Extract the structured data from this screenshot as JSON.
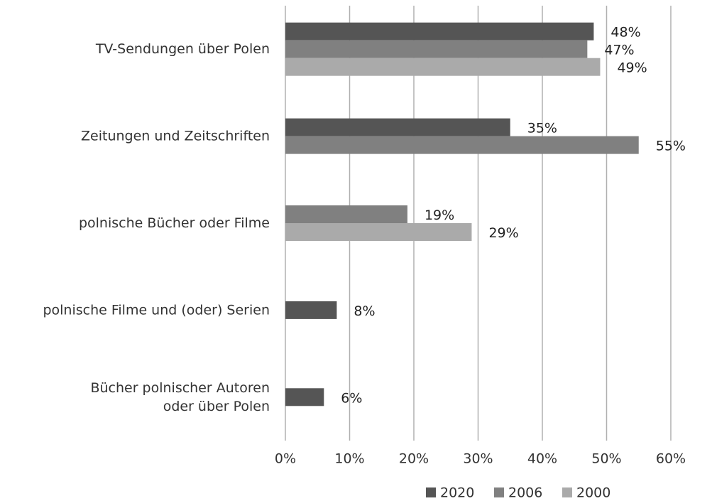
{
  "chart_data": {
    "type": "barh",
    "categories": [
      "TV-Sendungen über Polen",
      "Zeitungen und Zeitschriften",
      "polnische Bücher oder Filme",
      "polnische Filme und (oder) Serien",
      "Bücher polnischer Autoren\noder über Polen"
    ],
    "series": [
      {
        "name": "2020",
        "color": "#555555",
        "values": [
          48,
          35,
          null,
          8,
          6
        ],
        "value_labels": [
          "48%",
          "35%",
          null,
          "8%",
          "6%"
        ]
      },
      {
        "name": "2006",
        "color": "#808080",
        "values": [
          47,
          55,
          19,
          null,
          null
        ],
        "value_labels": [
          "47%",
          "55%",
          "19%",
          null,
          null
        ]
      },
      {
        "name": "2000",
        "color": "#aaaaaa",
        "values": [
          49,
          null,
          29,
          null,
          null
        ],
        "value_labels": [
          "49%",
          null,
          "29%",
          null,
          null
        ]
      }
    ],
    "xlim": [
      0,
      60
    ],
    "xticks": [
      {
        "value": 0,
        "label": "0%"
      },
      {
        "value": 10,
        "label": "10%"
      },
      {
        "value": 20,
        "label": "20%"
      },
      {
        "value": 30,
        "label": "30%"
      },
      {
        "value": 40,
        "label": "40%"
      },
      {
        "value": 50,
        "label": "50%"
      },
      {
        "value": 60,
        "label": "60%"
      }
    ],
    "grid": true,
    "legend": "bottom"
  }
}
